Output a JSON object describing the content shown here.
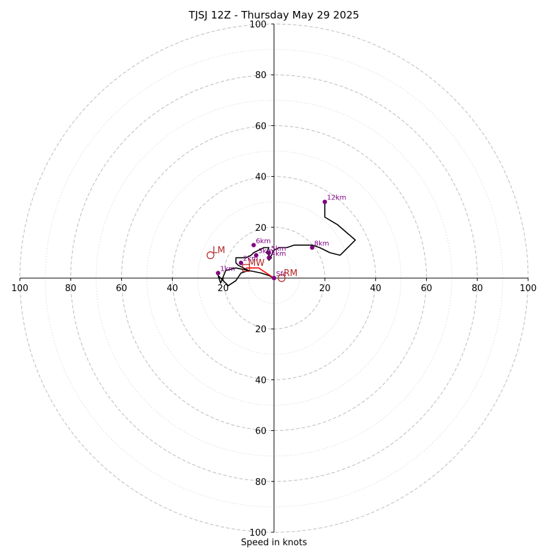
{
  "chart_data": {
    "type": "hodograph",
    "title": "TJSJ 12Z - Thursday May 29 2025",
    "xlabel": "Speed in knots",
    "range": [
      -100,
      100
    ],
    "x_tick_labels": [
      "100",
      "80",
      "60",
      "40",
      "20",
      "20",
      "40",
      "60",
      "80",
      "100"
    ],
    "x_tick_values": [
      -100,
      -80,
      -60,
      -40,
      -20,
      20,
      40,
      60,
      80,
      100
    ],
    "y_tick_labels": [
      "100",
      "80",
      "60",
      "40",
      "20",
      "20",
      "40",
      "60",
      "80",
      "100"
    ],
    "y_tick_values": [
      100,
      80,
      60,
      40,
      20,
      -20,
      -40,
      -60,
      -80,
      -100
    ],
    "rings_major": [
      20,
      40,
      60,
      80,
      100
    ],
    "rings_minor": [
      10,
      30,
      50,
      70,
      90
    ],
    "colors": {
      "trace": "#000000",
      "points": "#800080",
      "motion": "#b22222",
      "mean_wind_line": "#ff0000",
      "grid": "#bbbbbb"
    },
    "trace": {
      "u": [
        0,
        -2,
        -5,
        -10,
        -15,
        -19,
        -21,
        -22,
        -20,
        -18,
        -15,
        -13,
        -10,
        -12,
        -14,
        -15,
        -15,
        -13,
        -11,
        -9,
        -8,
        -6,
        -4,
        -2,
        -3,
        -1,
        -2,
        -1,
        0,
        2,
        5,
        8,
        11,
        13,
        15,
        18,
        22,
        26,
        27,
        32,
        25,
        20,
        20
      ],
      "v": [
        0,
        1,
        2,
        3,
        4,
        3,
        -2,
        1,
        -1,
        -3,
        -1,
        2,
        3,
        4,
        5,
        6,
        8,
        8,
        8,
        9,
        10,
        11,
        12,
        12,
        10,
        8,
        7,
        9,
        11,
        12,
        12,
        13,
        13,
        13,
        13,
        12,
        10,
        9,
        10,
        15,
        21,
        24,
        30
      ]
    },
    "height_points": [
      {
        "label": "Sfc",
        "u": 0,
        "v": 0
      },
      {
        "label": "1km",
        "u": -22,
        "v": 2
      },
      {
        "label": "2km",
        "u": -13,
        "v": 6
      },
      {
        "label": "3km",
        "u": -7,
        "v": 9
      },
      {
        "label": "4km",
        "u": -2,
        "v": 8
      },
      {
        "label": "5km",
        "u": -2,
        "v": 10
      },
      {
        "label": "6km",
        "u": -8,
        "v": 13
      },
      {
        "label": "8km",
        "u": 15,
        "v": 12
      },
      {
        "label": "12km",
        "u": 20,
        "v": 30
      }
    ],
    "mean_wind_line": {
      "u": [
        0,
        -6,
        -11
      ],
      "v": [
        0,
        4,
        4
      ]
    },
    "storm_motion": [
      {
        "label": "LM",
        "u": -25,
        "v": 9
      },
      {
        "label": "RM",
        "u": 3,
        "v": 0
      },
      {
        "label": "MW",
        "u": -11,
        "v": 4
      }
    ]
  }
}
